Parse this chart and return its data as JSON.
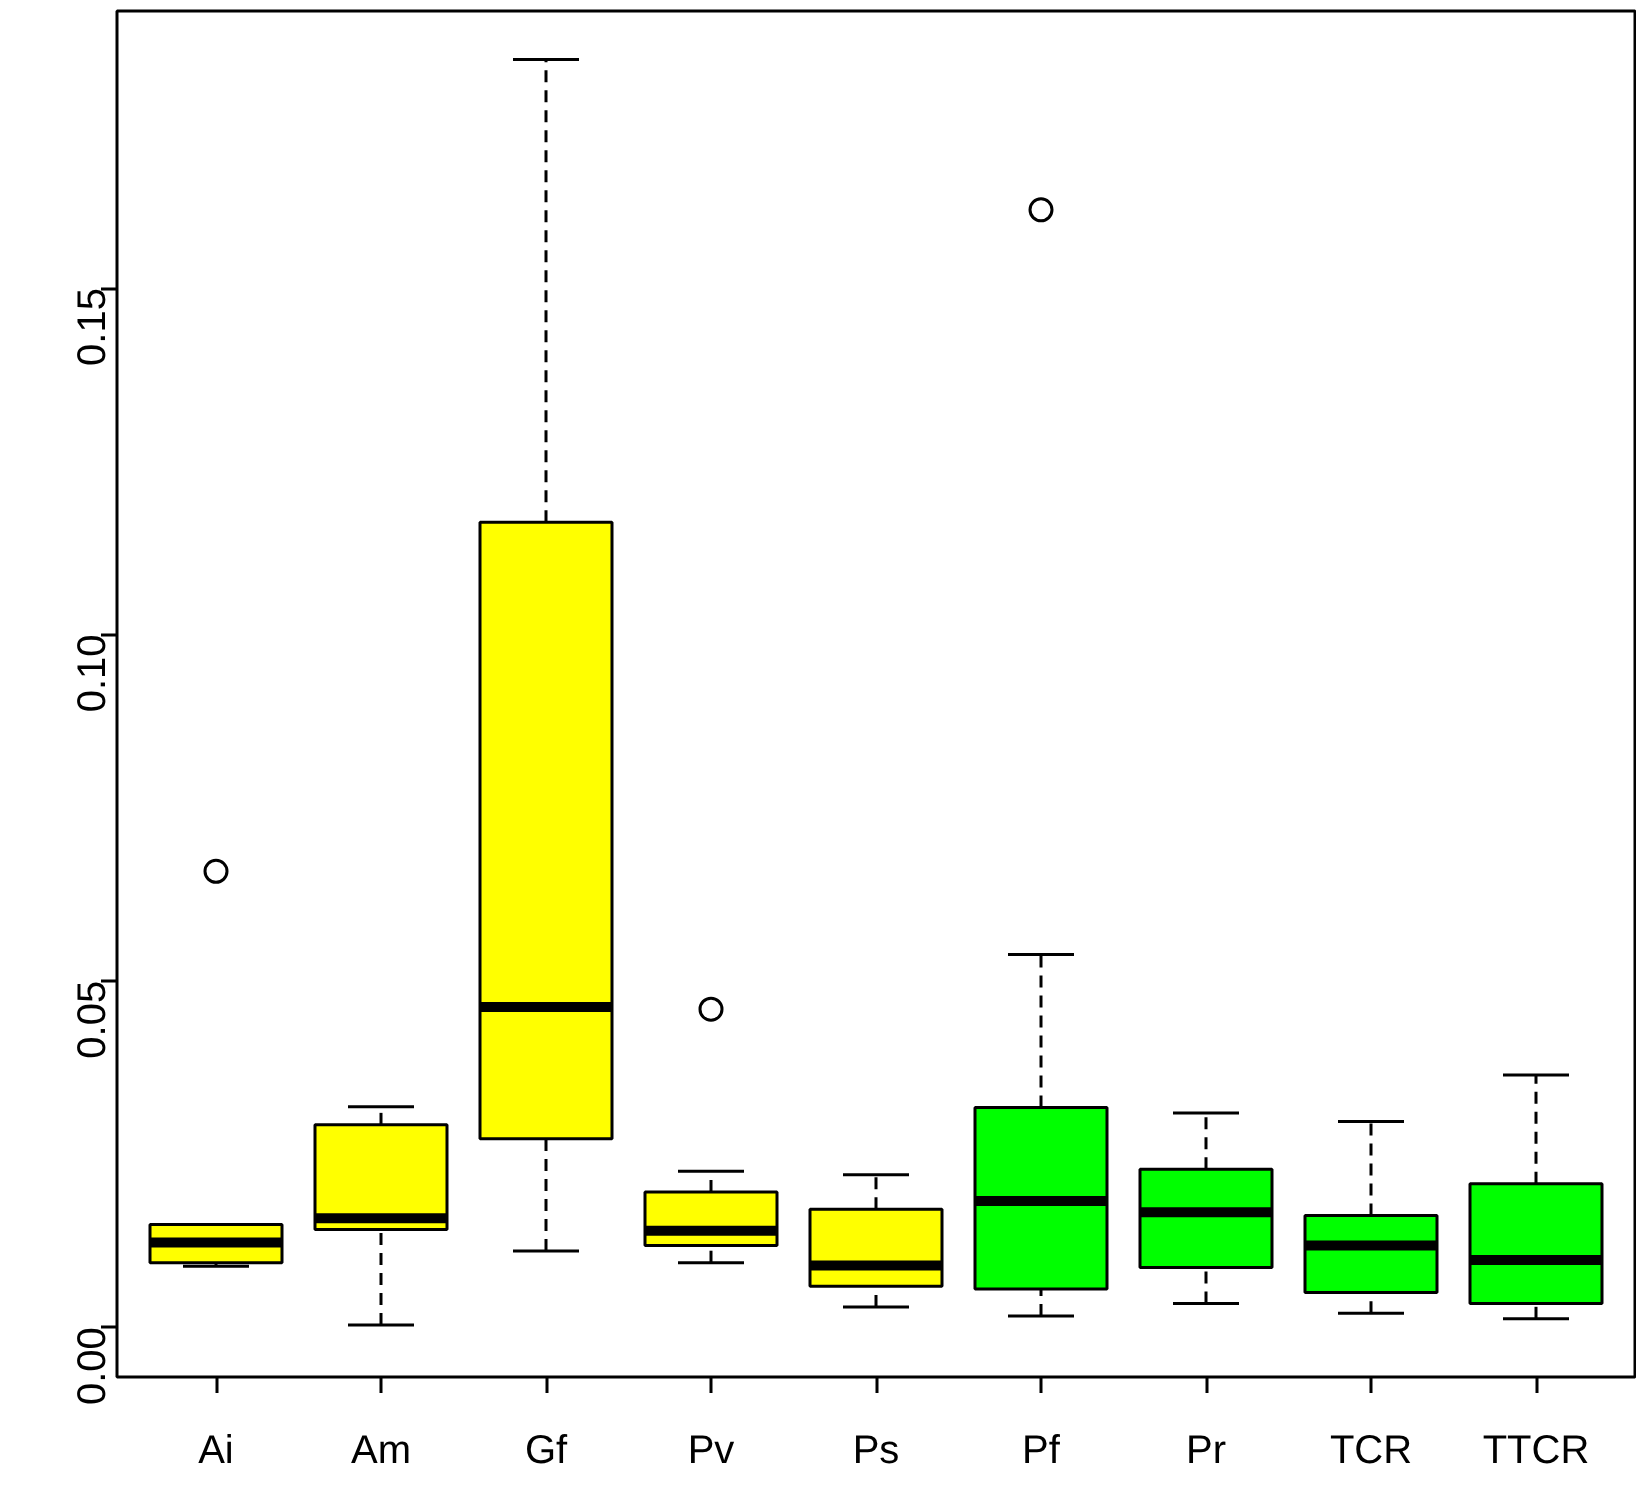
{
  "chart_data": {
    "type": "box",
    "categories": [
      "Ai",
      "Am",
      "Gf",
      "Pv",
      "Ps",
      "Pf",
      "Pr",
      "TCR",
      "TTCR"
    ],
    "colors": [
      "#ffff00",
      "#ffff00",
      "#ffff00",
      "#ffff00",
      "#ffff00",
      "#00ff00",
      "#00ff00",
      "#00ff00",
      "#00ff00"
    ],
    "boxes": [
      {
        "low": 0.0088,
        "q1": 0.0093,
        "median": 0.0122,
        "q3": 0.0148,
        "high": 0.0148,
        "outliers": [
          0.0658
        ]
      },
      {
        "low": 0.0003,
        "q1": 0.0141,
        "median": 0.0157,
        "q3": 0.0292,
        "high": 0.0318
      },
      {
        "low": 0.011,
        "q1": 0.0272,
        "median": 0.0462,
        "q3": 0.1162,
        "high": 0.183
      },
      {
        "low": 0.0093,
        "q1": 0.0118,
        "median": 0.0139,
        "q3": 0.0195,
        "high": 0.0225,
        "outliers": [
          0.0459
        ]
      },
      {
        "low": 0.0029,
        "q1": 0.0059,
        "median": 0.0089,
        "q3": 0.017,
        "high": 0.022
      },
      {
        "low": 0.0016,
        "q1": 0.0055,
        "median": 0.0182,
        "q3": 0.0317,
        "high": 0.0538,
        "outliers": [
          0.1613
        ]
      },
      {
        "low": 0.0034,
        "q1": 0.0086,
        "median": 0.0166,
        "q3": 0.0228,
        "high": 0.0309
      },
      {
        "low": 0.002,
        "q1": 0.005,
        "median": 0.0118,
        "q3": 0.0161,
        "high": 0.0297
      },
      {
        "low": 0.0012,
        "q1": 0.0034,
        "median": 0.0097,
        "q3": 0.0207,
        "high": 0.0364
      }
    ],
    "ylim": [
      -0.0072,
      0.19
    ],
    "yticks": [
      {
        "value": 0,
        "label": "0.00"
      },
      {
        "value": 0.05,
        "label": "0.05"
      },
      {
        "value": 0.1,
        "label": "0.10"
      },
      {
        "value": 0.15,
        "label": "0.15"
      }
    ],
    "marker": "circle"
  }
}
